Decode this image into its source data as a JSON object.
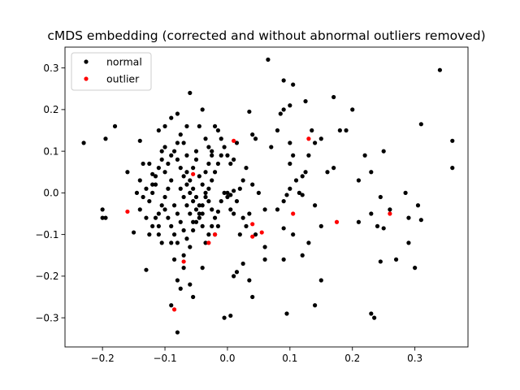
{
  "chart_data": {
    "type": "scatter",
    "title": "cMDS embedding (corrected and without abnormal outliers removed)",
    "xlabel": "",
    "ylabel": "",
    "xlim": [
      -0.26,
      0.385
    ],
    "ylim": [
      -0.37,
      0.35
    ],
    "xticks": [
      -0.2,
      -0.1,
      0.0,
      0.1,
      0.2,
      0.3
    ],
    "xtick_labels": [
      "−0.2",
      "−0.1",
      "0.0",
      "0.1",
      "0.2",
      "0.3"
    ],
    "yticks": [
      -0.3,
      -0.2,
      -0.1,
      0.0,
      0.1,
      0.2,
      0.3
    ],
    "ytick_labels": [
      "−0.3",
      "−0.2",
      "−0.1",
      "0.0",
      "0.1",
      "0.2",
      "0.3"
    ],
    "grid": false,
    "legend_position": "upper-left",
    "series": [
      {
        "name": "normal",
        "color": "#000000",
        "points": [
          [
            -0.23,
            0.12
          ],
          [
            -0.195,
            0.13
          ],
          [
            -0.18,
            0.16
          ],
          [
            -0.2,
            -0.04
          ],
          [
            -0.2,
            -0.06
          ],
          [
            -0.195,
            -0.06
          ],
          [
            -0.16,
            0.05
          ],
          [
            -0.15,
            -0.095
          ],
          [
            -0.14,
            0.125
          ],
          [
            -0.135,
            0.07
          ],
          [
            -0.13,
            -0.185
          ],
          [
            -0.125,
            -0.1
          ],
          [
            -0.12,
            0.045
          ],
          [
            -0.115,
            -0.06
          ],
          [
            -0.11,
            -0.08
          ],
          [
            -0.11,
            0.15
          ],
          [
            -0.1,
            0.16
          ],
          [
            -0.09,
            0.18
          ],
          [
            -0.09,
            -0.12
          ],
          [
            -0.085,
            -0.16
          ],
          [
            -0.08,
            0.19
          ],
          [
            -0.08,
            -0.21
          ],
          [
            -0.075,
            -0.23
          ],
          [
            -0.07,
            -0.18
          ],
          [
            -0.065,
            0.16
          ],
          [
            -0.06,
            0.24
          ],
          [
            -0.06,
            -0.22
          ],
          [
            -0.055,
            -0.25
          ],
          [
            -0.05,
            0.1
          ],
          [
            -0.045,
            0.16
          ],
          [
            -0.04,
            0.2
          ],
          [
            -0.04,
            -0.18
          ],
          [
            -0.035,
            0.13
          ],
          [
            -0.03,
            0.11
          ],
          [
            -0.025,
            0.1
          ],
          [
            -0.02,
            0.16
          ],
          [
            -0.015,
            0.15
          ],
          [
            -0.01,
            0.13
          ],
          [
            0.0,
            0.09
          ],
          [
            0.005,
            0.07
          ],
          [
            0.01,
            0.08
          ],
          [
            0.015,
            0.12
          ],
          [
            -0.09,
            -0.27
          ],
          [
            -0.08,
            -0.335
          ],
          [
            -0.005,
            -0.3
          ],
          [
            0.005,
            -0.295
          ],
          [
            0.01,
            -0.2
          ],
          [
            0.015,
            -0.19
          ],
          [
            0.025,
            -0.17
          ],
          [
            0.035,
            -0.21
          ],
          [
            0.04,
            -0.25
          ],
          [
            0.035,
            0.195
          ],
          [
            0.04,
            0.14
          ],
          [
            0.045,
            0.13
          ],
          [
            0.065,
            0.32
          ],
          [
            0.09,
            0.27
          ],
          [
            0.105,
            0.26
          ],
          [
            0.085,
            0.19
          ],
          [
            0.08,
            0.15
          ],
          [
            0.09,
            0.2
          ],
          [
            0.1,
            0.21
          ],
          [
            0.125,
            0.22
          ],
          [
            0.135,
            0.15
          ],
          [
            0.14,
            0.12
          ],
          [
            0.15,
            0.13
          ],
          [
            0.17,
            0.23
          ],
          [
            0.2,
            0.2
          ],
          [
            0.18,
            0.15
          ],
          [
            0.19,
            0.15
          ],
          [
            0.07,
            0.11
          ],
          [
            0.1,
            0.12
          ],
          [
            0.13,
            0.09
          ],
          [
            0.16,
            0.05
          ],
          [
            0.17,
            0.06
          ],
          [
            0.21,
            0.03
          ],
          [
            0.22,
            0.09
          ],
          [
            0.23,
            0.05
          ],
          [
            0.25,
            0.1
          ],
          [
            0.245,
            -0.01
          ],
          [
            0.26,
            -0.04
          ],
          [
            0.29,
            -0.06
          ],
          [
            0.285,
            0.0
          ],
          [
            0.305,
            -0.03
          ],
          [
            0.31,
            -0.065
          ],
          [
            0.31,
            0.165
          ],
          [
            0.36,
            0.125
          ],
          [
            0.36,
            0.06
          ],
          [
            0.34,
            0.295
          ],
          [
            0.21,
            -0.07
          ],
          [
            0.23,
            -0.05
          ],
          [
            0.24,
            -0.08
          ],
          [
            0.25,
            -0.085
          ],
          [
            0.245,
            -0.165
          ],
          [
            0.27,
            -0.16
          ],
          [
            0.29,
            -0.12
          ],
          [
            0.3,
            -0.18
          ],
          [
            0.23,
            -0.29
          ],
          [
            0.235,
            -0.3
          ],
          [
            0.14,
            -0.27
          ],
          [
            0.095,
            -0.29
          ],
          [
            0.15,
            -0.21
          ],
          [
            0.12,
            -0.15
          ],
          [
            0.13,
            -0.12
          ],
          [
            0.105,
            -0.1
          ],
          [
            0.09,
            -0.085
          ],
          [
            0.08,
            -0.04
          ],
          [
            0.09,
            -0.02
          ],
          [
            0.095,
            -0.005
          ],
          [
            0.1,
            0.01
          ],
          [
            0.11,
            0.03
          ],
          [
            0.115,
            0.0
          ],
          [
            0.12,
            -0.005
          ],
          [
            0.125,
            0.05
          ],
          [
            0.1,
            0.07
          ],
          [
            0.105,
            0.09
          ],
          [
            0.12,
            0.04
          ],
          [
            0.14,
            -0.03
          ],
          [
            0.15,
            -0.08
          ],
          [
            0.06,
            -0.04
          ],
          [
            0.06,
            -0.16
          ],
          [
            0.06,
            -0.13
          ],
          [
            0.09,
            -0.16
          ],
          [
            0.05,
            0.0
          ],
          [
            0.04,
            0.02
          ],
          [
            0.03,
            0.06
          ],
          [
            0.025,
            0.03
          ],
          [
            0.02,
            0.01
          ],
          [
            0.015,
            -0.02
          ],
          [
            0.01,
            -0.05
          ],
          [
            0.005,
            -0.04
          ],
          [
            0.0,
            -0.01
          ],
          [
            -0.005,
            0.0
          ],
          [
            -0.01,
            -0.02
          ],
          [
            -0.015,
            -0.045
          ],
          [
            -0.02,
            -0.06
          ],
          [
            -0.025,
            -0.08
          ],
          [
            -0.03,
            -0.1
          ],
          [
            -0.035,
            -0.12
          ],
          [
            -0.04,
            -0.08
          ],
          [
            -0.045,
            -0.06
          ],
          [
            -0.05,
            -0.04
          ],
          [
            -0.055,
            -0.02
          ],
          [
            -0.06,
            0.0
          ],
          [
            -0.065,
            0.02
          ],
          [
            -0.07,
            0.04
          ],
          [
            -0.075,
            0.06
          ],
          [
            -0.08,
            0.08
          ],
          [
            -0.085,
            0.1
          ],
          [
            -0.09,
            0.03
          ],
          [
            -0.095,
            0.01
          ],
          [
            -0.1,
            -0.01
          ],
          [
            -0.105,
            -0.03
          ],
          [
            -0.11,
            -0.05
          ],
          [
            -0.115,
            0.02
          ],
          [
            -0.12,
            0.0
          ],
          [
            -0.125,
            -0.02
          ],
          [
            -0.13,
            0.01
          ],
          [
            -0.135,
            -0.01
          ],
          [
            -0.14,
            0.03
          ],
          [
            -0.145,
            0.0
          ],
          [
            -0.085,
            -0.03
          ],
          [
            -0.08,
            -0.05
          ],
          [
            -0.075,
            -0.07
          ],
          [
            -0.07,
            -0.09
          ],
          [
            -0.065,
            -0.11
          ],
          [
            -0.06,
            -0.13
          ],
          [
            -0.055,
            -0.09
          ],
          [
            -0.05,
            -0.07
          ],
          [
            -0.045,
            -0.05
          ],
          [
            -0.04,
            -0.03
          ],
          [
            -0.035,
            -0.01
          ],
          [
            -0.03,
            0.01
          ],
          [
            -0.025,
            0.03
          ],
          [
            -0.02,
            0.05
          ],
          [
            -0.015,
            0.07
          ],
          [
            -0.01,
            0.09
          ],
          [
            -0.005,
            0.11
          ],
          [
            -0.055,
            0.06
          ],
          [
            -0.05,
            0.08
          ],
          [
            -0.045,
            0.04
          ],
          [
            -0.04,
            0.02
          ],
          [
            -0.035,
            0.0
          ],
          [
            -0.03,
            -0.02
          ],
          [
            -0.025,
            -0.04
          ],
          [
            -0.02,
            -0.1
          ],
          [
            -0.015,
            -0.08
          ],
          [
            -0.1,
            0.05
          ],
          [
            -0.095,
            0.07
          ],
          [
            -0.09,
            0.09
          ],
          [
            -0.105,
            0.08
          ],
          [
            -0.11,
            0.06
          ],
          [
            -0.115,
            0.04
          ],
          [
            -0.12,
            0.02
          ],
          [
            -0.1,
            -0.04
          ],
          [
            -0.095,
            -0.06
          ],
          [
            -0.09,
            -0.08
          ],
          [
            -0.085,
            -0.1
          ],
          [
            -0.08,
            -0.12
          ],
          [
            -0.07,
            -0.15
          ],
          [
            -0.065,
            0.05
          ],
          [
            -0.06,
            0.03
          ],
          [
            -0.055,
            0.01
          ],
          [
            -0.05,
            -0.01
          ],
          [
            -0.045,
            -0.03
          ],
          [
            -0.04,
            -0.05
          ],
          [
            -0.035,
            0.05
          ],
          [
            -0.03,
            0.07
          ],
          [
            -0.025,
            0.09
          ],
          [
            -0.075,
            0.01
          ],
          [
            -0.07,
            -0.01
          ],
          [
            -0.065,
            -0.03
          ],
          [
            -0.06,
            -0.05
          ],
          [
            -0.055,
            -0.07
          ],
          [
            -0.08,
            0.12
          ],
          [
            -0.075,
            0.14
          ],
          [
            -0.07,
            0.12
          ],
          [
            -0.065,
            0.09
          ],
          [
            -0.1,
            0.11
          ],
          [
            -0.105,
            0.1
          ],
          [
            -0.125,
            0.07
          ],
          [
            0.0,
            0.0
          ],
          [
            0.005,
            -0.005
          ],
          [
            0.01,
            0.005
          ],
          [
            -0.13,
            -0.06
          ],
          [
            -0.14,
            -0.04
          ],
          [
            -0.11,
            -0.1
          ],
          [
            -0.12,
            -0.08
          ],
          [
            -0.105,
            -0.12
          ],
          [
            0.02,
            -0.1
          ],
          [
            0.025,
            -0.06
          ],
          [
            0.03,
            -0.08
          ],
          [
            0.035,
            -0.05
          ],
          [
            0.045,
            -0.1
          ]
        ]
      },
      {
        "name": "outlier",
        "color": "#ff0000",
        "points": [
          [
            -0.16,
            -0.045
          ],
          [
            -0.085,
            -0.28
          ],
          [
            -0.07,
            -0.165
          ],
          [
            -0.055,
            0.045
          ],
          [
            -0.03,
            -0.12
          ],
          [
            -0.02,
            -0.1
          ],
          [
            0.01,
            0.125
          ],
          [
            0.04,
            -0.075
          ],
          [
            0.04,
            -0.105
          ],
          [
            0.055,
            -0.095
          ],
          [
            0.105,
            -0.05
          ],
          [
            0.13,
            0.13
          ],
          [
            0.175,
            -0.07
          ],
          [
            0.26,
            -0.05
          ]
        ]
      }
    ]
  }
}
